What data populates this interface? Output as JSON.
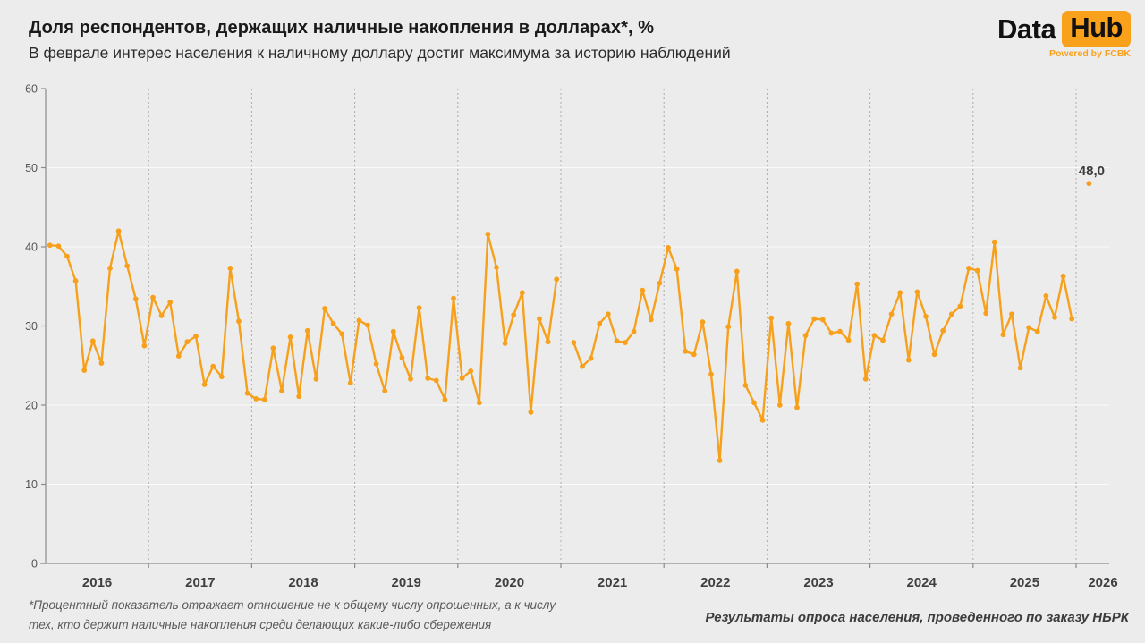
{
  "header": {
    "title": "Доля респондентов, держащих наличные накопления в долларах*, %",
    "subtitle": "В феврале интерес населения к наличному доллару достиг максимума за историю наблюдений"
  },
  "logo": {
    "part1": "Data",
    "part2": "Hub",
    "powered_by": "Powered by FCBK",
    "accent_color": "#F9A11B"
  },
  "footer": {
    "note_line1": "*Процентный показатель отражает отношение не к общему числу опрошенных, а к числу",
    "note_line2": "тех, кто держит наличные накопления среди делающих какие-либо сбережения",
    "source": "Результаты опроса населения, проведенного по заказу НБРК"
  },
  "chart_data": {
    "type": "line",
    "unit": "%",
    "line_color": "#F7A01B",
    "background_color": "#ececec",
    "grid": "dashed-vertical-year-lines",
    "legend": "none",
    "y_axis": {
      "min": 0,
      "max": 60,
      "tick_step": 10,
      "ticks": [
        0,
        10,
        20,
        30,
        40,
        50,
        60
      ]
    },
    "x_axis_year_labels": [
      "2016",
      "2017",
      "2018",
      "2019",
      "2020",
      "2021",
      "2022",
      "2023",
      "2024",
      "2025",
      "2026"
    ],
    "annotation": {
      "label": "48,0",
      "value": 48.0,
      "month": "2026-02"
    },
    "series": [
      {
        "name": "Доля респондентов, держащих наличные накопления в долларах, %",
        "monthly": {
          "2016": [
            40.2,
            40.1,
            38.8,
            35.7,
            24.4,
            28.1,
            25.3,
            37.3,
            42.0,
            37.6,
            33.4,
            27.5
          ],
          "2017": [
            33.6,
            31.3,
            33.0,
            26.2,
            28.0,
            28.7,
            22.6,
            24.9,
            23.6,
            37.3,
            30.6,
            21.5
          ],
          "2018": [
            20.8,
            20.7,
            27.2,
            21.8,
            28.6,
            21.1,
            29.4,
            23.3,
            32.2,
            30.3,
            29.0,
            22.8
          ],
          "2019": [
            30.7,
            30.1,
            25.2,
            21.8,
            29.3,
            26.0,
            23.3,
            32.3,
            23.4,
            23.1,
            20.7,
            33.5
          ],
          "2020": [
            23.4,
            24.3,
            20.3,
            41.6,
            37.4,
            27.8,
            31.4,
            34.2,
            19.1,
            30.9,
            28.0,
            35.9
          ],
          "2021": [
            null,
            27.9,
            24.9,
            25.9,
            30.3,
            31.5,
            28.1,
            27.9,
            29.3,
            34.5,
            30.8,
            35.4
          ],
          "2022": [
            39.9,
            37.2,
            26.8,
            26.4,
            30.5,
            23.9,
            13.0,
            29.9,
            36.9,
            22.5,
            20.3,
            18.1
          ],
          "2023": [
            31.0,
            20.0,
            30.3,
            19.7,
            28.8,
            30.9,
            30.8,
            29.1,
            29.3,
            28.2,
            35.3,
            23.3
          ],
          "2024": [
            28.8,
            28.2,
            31.5,
            34.2,
            25.7,
            34.3,
            31.2,
            26.4,
            29.4,
            31.5,
            32.5,
            37.3
          ],
          "2025": [
            37.0,
            31.6,
            40.6,
            28.9,
            31.5,
            24.7,
            29.8,
            29.3,
            33.8,
            31.1,
            36.3,
            30.9
          ],
          "2026": [
            null,
            48.0
          ]
        }
      }
    ]
  }
}
